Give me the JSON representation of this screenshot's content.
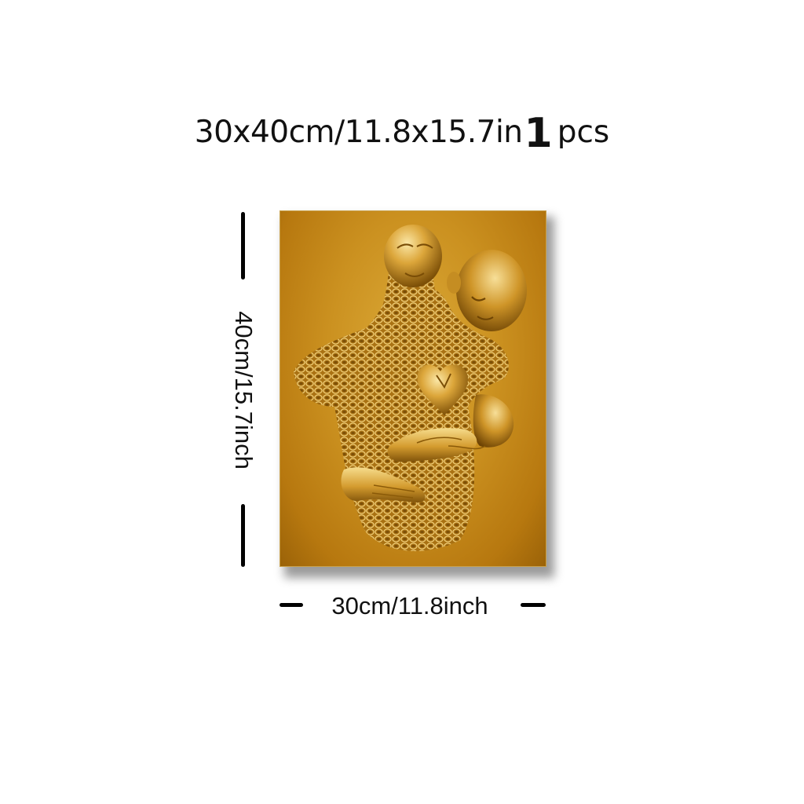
{
  "header": {
    "size_text": "30x40cm/11.8x15.7in",
    "quantity_number": "1",
    "quantity_unit": "pcs"
  },
  "dimensions": {
    "height_label": "40cm/15.7inch",
    "width_label": "30cm/11.8inch"
  },
  "artwork": {
    "subject": "gold-metal-embracing-couple-sculpture",
    "colors": {
      "background": "#c8901f",
      "figure_light": "#f2d27a",
      "figure_mid": "#d9a83a",
      "figure_dark": "#8a5a08"
    }
  }
}
